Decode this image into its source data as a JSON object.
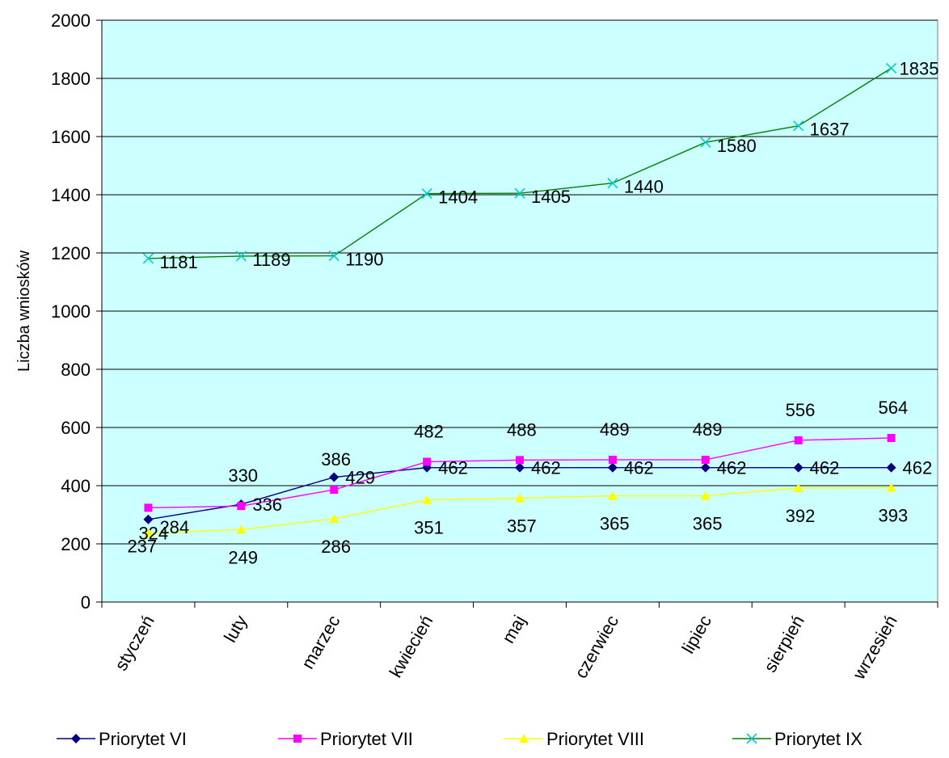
{
  "chart_data": {
    "type": "line",
    "title": "",
    "xlabel": "",
    "ylabel": "Liczba wniosków",
    "ylim": [
      0,
      2000
    ],
    "yticks": [
      0,
      200,
      400,
      600,
      800,
      1000,
      1200,
      1400,
      1600,
      1800,
      2000
    ],
    "ytick_labels": [
      "0",
      "200",
      "400",
      "600",
      "800",
      "1000",
      "1200",
      "1400",
      "1600",
      "1800",
      "2000"
    ],
    "grid": true,
    "plot_background": "#ccffff",
    "legend_position": "bottom",
    "categories": [
      "styczeń",
      "luty",
      "marzec",
      "kwiecień",
      "maj",
      "czerwiec",
      "lipiec",
      "sierpień",
      "wrzesień"
    ],
    "series": [
      {
        "name": "Priorytet VI",
        "color": "#000080",
        "marker": "diamond",
        "values": [
          284,
          336,
          429,
          462,
          462,
          462,
          462,
          462,
          462
        ],
        "labels": [
          "284",
          "336",
          "429",
          "462",
          "462",
          "462",
          "462",
          "462",
          "462"
        ]
      },
      {
        "name": "Priorytet VII",
        "color": "#ff00ff",
        "marker": "square",
        "values": [
          324,
          330,
          386,
          482,
          488,
          489,
          489,
          556,
          564
        ],
        "labels": [
          "324",
          "330",
          "386",
          "482",
          "488",
          "489",
          "489",
          "556",
          "564"
        ]
      },
      {
        "name": "Priorytet VIII",
        "color": "#ffff00",
        "marker": "triangle",
        "values": [
          237,
          249,
          286,
          351,
          357,
          365,
          365,
          392,
          393
        ],
        "labels": [
          "237",
          "249",
          "286",
          "351",
          "357",
          "365",
          "365",
          "392",
          "393"
        ]
      },
      {
        "name": "Priorytet IX",
        "color": "#008000",
        "marker_color": "#00cccc",
        "marker": "x",
        "values": [
          1181,
          1189,
          1190,
          1404,
          1405,
          1440,
          1580,
          1637,
          1835
        ],
        "labels": [
          "1181",
          "1189",
          "1190",
          "1404",
          "1405",
          "1440",
          "1580",
          "1637",
          "1835"
        ]
      }
    ]
  }
}
